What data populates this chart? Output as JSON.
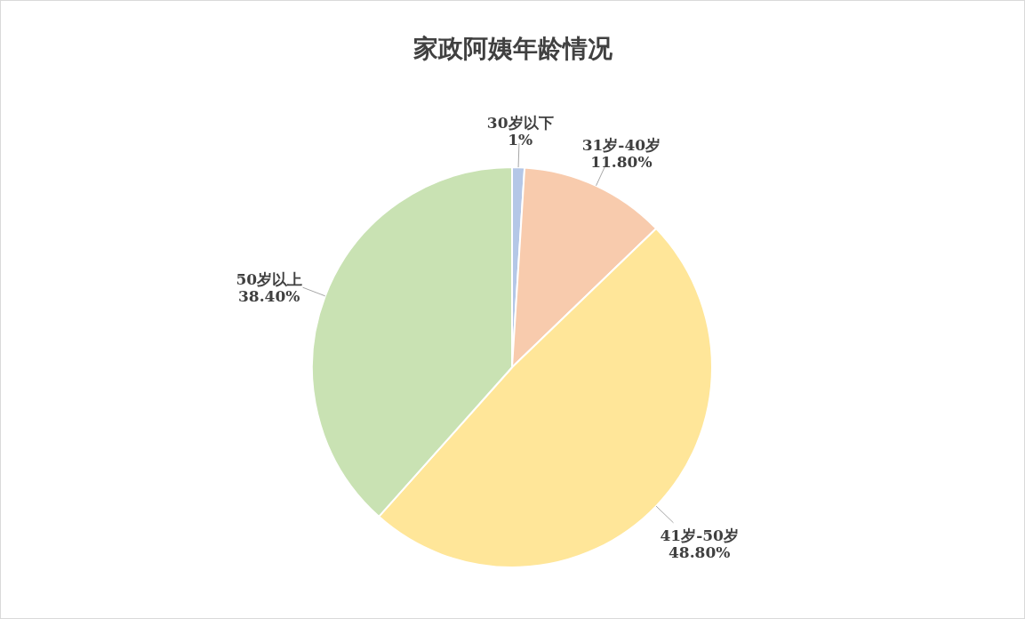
{
  "chart_data": {
    "type": "pie",
    "title": "家政阿姨年龄情况",
    "categories": [
      "30岁以下",
      "31岁-40岁",
      "41岁-50岁",
      "50岁以上"
    ],
    "values": [
      1,
      11.8,
      48.8,
      38.4
    ],
    "value_labels": [
      "1%",
      "11.80%",
      "48.80%",
      "38.40%"
    ],
    "colors": [
      "#b4c7e7",
      "#f8cbad",
      "#ffe699",
      "#c9e2b3"
    ]
  }
}
